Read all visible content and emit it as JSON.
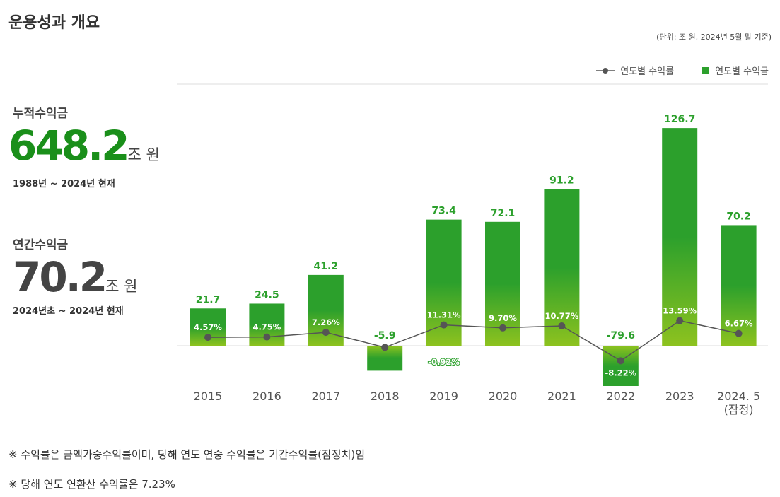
{
  "title": "운용성과 개요",
  "unit_note": "(단위: 조 원, 2024년 5월 말 기준)",
  "cumulative": {
    "label": "누적수익금",
    "value": "648.2",
    "suffix": "조 원",
    "period": "1988년 ~ 2024년 현재"
  },
  "annual": {
    "label": "연간수익금",
    "value": "70.2",
    "suffix": "조 원",
    "period": "2024년초 ~ 2024년 현재"
  },
  "notes": [
    "※ 수익률은 금액가중수익률이며, 당해 연도 연중 수익률은 기간수익률(잠정치)임",
    "※ 당해 연도 연환산 수익률은 7.23%"
  ],
  "colors": {
    "bar_top": "#2ca02c",
    "bar_bottom": "#8dc21f",
    "line": "#555555",
    "value_label": "#2ca02c",
    "kpi_cumulative": "#1a8f1a",
    "kpi_annual": "#444444"
  },
  "chart_data": {
    "type": "bar+line",
    "legend": [
      {
        "name": "연도별 수익률",
        "type": "line"
      },
      {
        "name": "연도별 수익금",
        "type": "bar"
      }
    ],
    "legend_position": "top-right",
    "categories": [
      "2015",
      "2016",
      "2017",
      "2018",
      "2019",
      "2020",
      "2021",
      "2022",
      "2023",
      "2024. 5\n(잠정)"
    ],
    "category_lines": [
      [
        "2015"
      ],
      [
        "2016"
      ],
      [
        "2017"
      ],
      [
        "2018"
      ],
      [
        "2019"
      ],
      [
        "2020"
      ],
      [
        "2021"
      ],
      [
        "2022"
      ],
      [
        "2023"
      ],
      [
        "2024. 5",
        "(잠정)"
      ]
    ],
    "series": [
      {
        "name": "연도별 수익금",
        "type": "bar",
        "values": [
          21.7,
          24.5,
          41.2,
          -5.9,
          73.4,
          72.1,
          91.2,
          -79.6,
          126.7,
          70.2
        ],
        "labels": [
          "21.7",
          "24.5",
          "41.2",
          "-5.9",
          "73.4",
          "72.1",
          "91.2",
          "-79.6",
          "126.7",
          "70.2"
        ]
      },
      {
        "name": "연도별 수익률",
        "type": "line",
        "values": [
          4.57,
          4.75,
          7.26,
          -0.92,
          11.31,
          9.7,
          10.77,
          -8.22,
          13.59,
          6.67
        ],
        "labels": [
          "4.57%",
          "4.75%",
          "7.26%",
          "-0.92%",
          "11.31%",
          "9.70%",
          "10.77%",
          "-8.22%",
          "13.59%",
          "6.67%"
        ]
      }
    ],
    "grid": false
  }
}
